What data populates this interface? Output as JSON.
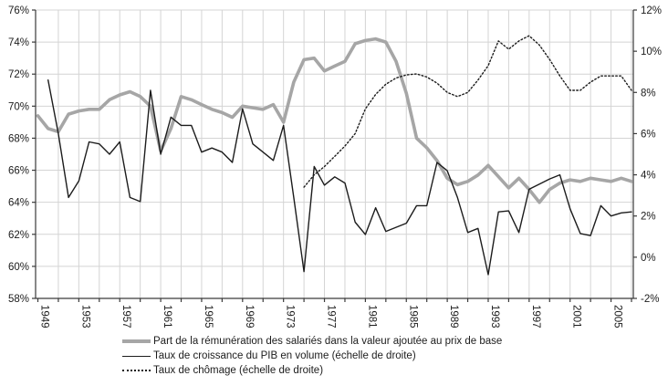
{
  "chart_data": {
    "type": "line",
    "title": "",
    "x_axis": {
      "min": 1949,
      "max": 2007,
      "tick_step": 2,
      "label_step": 4,
      "labels": [
        "1949",
        "1953",
        "1957",
        "1961",
        "1965",
        "1969",
        "1973",
        "1977",
        "1981",
        "1985",
        "1989",
        "1993",
        "1997",
        "2001",
        "2005"
      ]
    },
    "left_axis": {
      "min": 58,
      "max": 76,
      "step": 2,
      "labels": [
        "76%",
        "74%",
        "72%",
        "70%",
        "68%",
        "66%",
        "64%",
        "62%",
        "60%",
        "58%"
      ]
    },
    "right_axis": {
      "min": -2,
      "max": 12,
      "step": 2,
      "labels": [
        "12%",
        "10%",
        "8%",
        "6%",
        "4%",
        "2%",
        "0%",
        "-2%"
      ]
    },
    "grid": true,
    "legend_position": "bottom",
    "series": [
      {
        "name": "Part de la rémunération des salariés dans la valeur ajoutée au prix de base",
        "axis": "left",
        "style": "solid-thick",
        "color": "#a6a6a6",
        "start_year": 1949,
        "values": [
          69.4,
          68.6,
          68.4,
          69.5,
          69.7,
          69.8,
          69.8,
          70.4,
          70.7,
          70.9,
          70.6,
          70.0,
          67.2,
          68.6,
          70.6,
          70.4,
          70.1,
          69.8,
          69.6,
          69.3,
          70.0,
          69.9,
          69.8,
          70.1,
          69.0,
          71.5,
          72.9,
          73.0,
          72.2,
          72.5,
          72.8,
          73.9,
          74.1,
          74.2,
          74.0,
          72.8,
          70.8,
          68.0,
          67.4,
          66.6,
          65.5,
          65.1,
          65.3,
          65.7,
          66.3,
          65.6,
          64.9,
          65.5,
          64.8,
          64.0,
          64.8,
          65.2,
          65.4,
          65.3,
          65.5,
          65.4,
          65.3,
          65.5,
          65.3
        ]
      },
      {
        "name": "Taux de croissance du PIB en volume (échelle de droite)",
        "axis": "right",
        "style": "solid-thin",
        "color": "#1c1c1c",
        "start_year": 1950,
        "values": [
          8.6,
          6.0,
          2.9,
          3.7,
          5.6,
          5.5,
          5.0,
          5.6,
          2.9,
          2.7,
          8.1,
          5.0,
          6.8,
          6.4,
          6.4,
          5.1,
          5.3,
          5.1,
          4.6,
          7.2,
          5.5,
          5.1,
          4.7,
          6.4,
          2.9,
          -0.7,
          4.4,
          3.5,
          3.9,
          3.6,
          1.7,
          1.1,
          2.4,
          1.25,
          1.45,
          1.65,
          2.5,
          2.5,
          4.6,
          4.2,
          2.9,
          1.2,
          1.4,
          -0.85,
          2.2,
          2.25,
          1.2,
          3.3,
          3.55,
          3.8,
          4.0,
          2.35,
          1.15,
          1.05,
          2.5,
          2.0,
          2.15,
          2.2
        ]
      },
      {
        "name": "Taux de chômage (échelle de droite)",
        "axis": "right",
        "style": "dotted",
        "color": "#1c1c1c",
        "start_year": 1975,
        "values": [
          3.4,
          4.0,
          4.4,
          4.9,
          5.4,
          6.0,
          7.2,
          7.9,
          8.4,
          8.7,
          8.85,
          8.9,
          8.75,
          8.45,
          8.0,
          7.8,
          8.0,
          8.6,
          9.3,
          10.5,
          10.1,
          10.5,
          10.75,
          10.3,
          9.6,
          8.8,
          8.1,
          8.1,
          8.5,
          8.8,
          8.8,
          8.8,
          8.1
        ]
      }
    ],
    "layout": {
      "plot_left": 39,
      "plot_right": 694,
      "plot_top": 11,
      "plot_bottom": 327,
      "grid_color": "#d4d4d4",
      "axis_color": "#3a3a3a",
      "tick_label_color": "#1c1c1c"
    }
  },
  "legend": {
    "items": [
      {
        "label": "Part de la rémunération des salariés dans la valeur ajoutée au prix de base"
      },
      {
        "label": "Taux de croissance du PIB en volume (échelle de droite)"
      },
      {
        "label": "Taux de chômage (échelle de droite)"
      }
    ]
  }
}
